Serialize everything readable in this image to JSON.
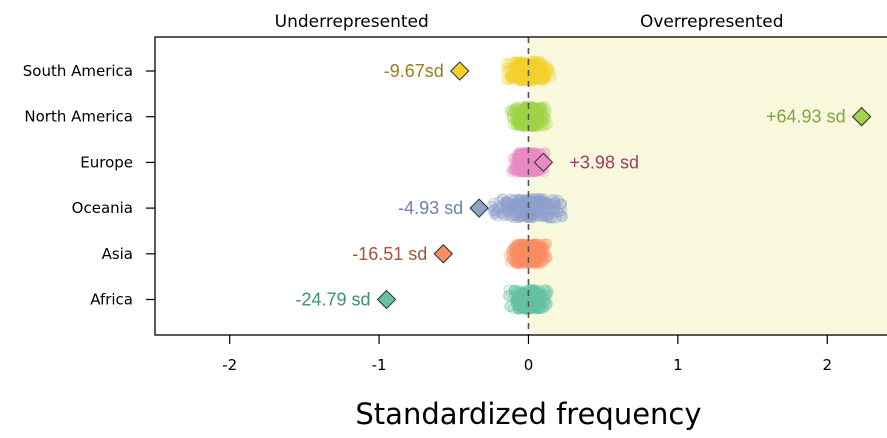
{
  "chart_data": {
    "type": "scatter",
    "xlabel": "Standardized frequency",
    "xlim": [
      -2.5,
      2.4
    ],
    "x_ticks": [
      "-2",
      "-1",
      "0",
      "1",
      "2"
    ],
    "x_tick_values": [
      -2,
      -1,
      0,
      1,
      2
    ],
    "reference_line_x": 0,
    "regions": [
      {
        "label": "Underrepresented",
        "from": -2.5,
        "to": 0,
        "color": "#ffffff"
      },
      {
        "label": "Overrepresented",
        "from": 0,
        "to": 2.4,
        "color": "#f8f8dc"
      }
    ],
    "categories": [
      "South America",
      "North America",
      "Europe",
      "Oceania",
      "Asia",
      "Africa"
    ],
    "series": [
      {
        "category": "South America",
        "observed_x": -0.46,
        "label": "-9.67sd",
        "color": "#f5d02f",
        "label_color": "#9a7d1a",
        "null_spread": 0.14,
        "label_side": "left"
      },
      {
        "category": "North America",
        "observed_x": 2.23,
        "label": "+64.93 sd",
        "color": "#a0d44a",
        "label_color": "#7aa93a",
        "null_spread": 0.12,
        "label_side": "left"
      },
      {
        "category": "Europe",
        "observed_x": 0.1,
        "label": "+3.98 sd",
        "color": "#e98cc4",
        "label_color": "#a13a6c",
        "null_spread": 0.11,
        "label_side": "right"
      },
      {
        "category": "Oceania",
        "observed_x": -0.33,
        "label": "-4.93 sd",
        "color": "#8ea0cb",
        "label_color": "#6c7fb2",
        "null_spread": 0.24,
        "label_side": "left"
      },
      {
        "category": "Asia",
        "observed_x": -0.57,
        "label": "-16.51 sd",
        "color": "#fc8d62",
        "label_color": "#a5553a",
        "null_spread": 0.12,
        "label_side": "left"
      },
      {
        "category": "Africa",
        "observed_x": -0.95,
        "label": "-24.79 sd",
        "color": "#66c2a5",
        "label_color": "#3f8f72",
        "null_spread": 0.13,
        "label_side": "left"
      }
    ],
    "grid": false,
    "legend": "none"
  }
}
